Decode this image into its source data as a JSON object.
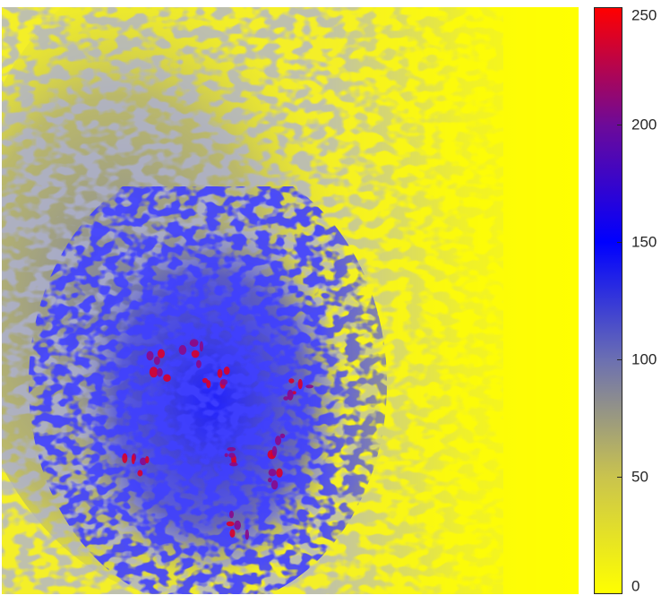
{
  "chart_data": {
    "type": "heatmap",
    "title": "",
    "xlabel": "",
    "ylabel": "",
    "axes_visible": false,
    "colormap": {
      "name": "yellow-gray-blue-purple-red",
      "stops": [
        {
          "value": 0,
          "color": "#ffff00"
        },
        {
          "value": 50,
          "color": "#c9c34e"
        },
        {
          "value": 100,
          "color": "#6b6fb2"
        },
        {
          "value": 150,
          "color": "#0000ff"
        },
        {
          "value": 200,
          "color": "#6d0a99"
        },
        {
          "value": 250,
          "color": "#ff0000"
        }
      ]
    },
    "colorbar": {
      "position": "right",
      "range": [
        0,
        250
      ],
      "ticks": [
        0,
        50,
        100,
        150,
        200,
        250
      ],
      "tick_labels": [
        "0",
        "50",
        "100",
        "150",
        "200",
        "250"
      ]
    },
    "description_regions": {
      "background_level": 20,
      "speckle_band_level": 60,
      "inner_cluster_level": 150,
      "hotspot_level": 240
    }
  }
}
